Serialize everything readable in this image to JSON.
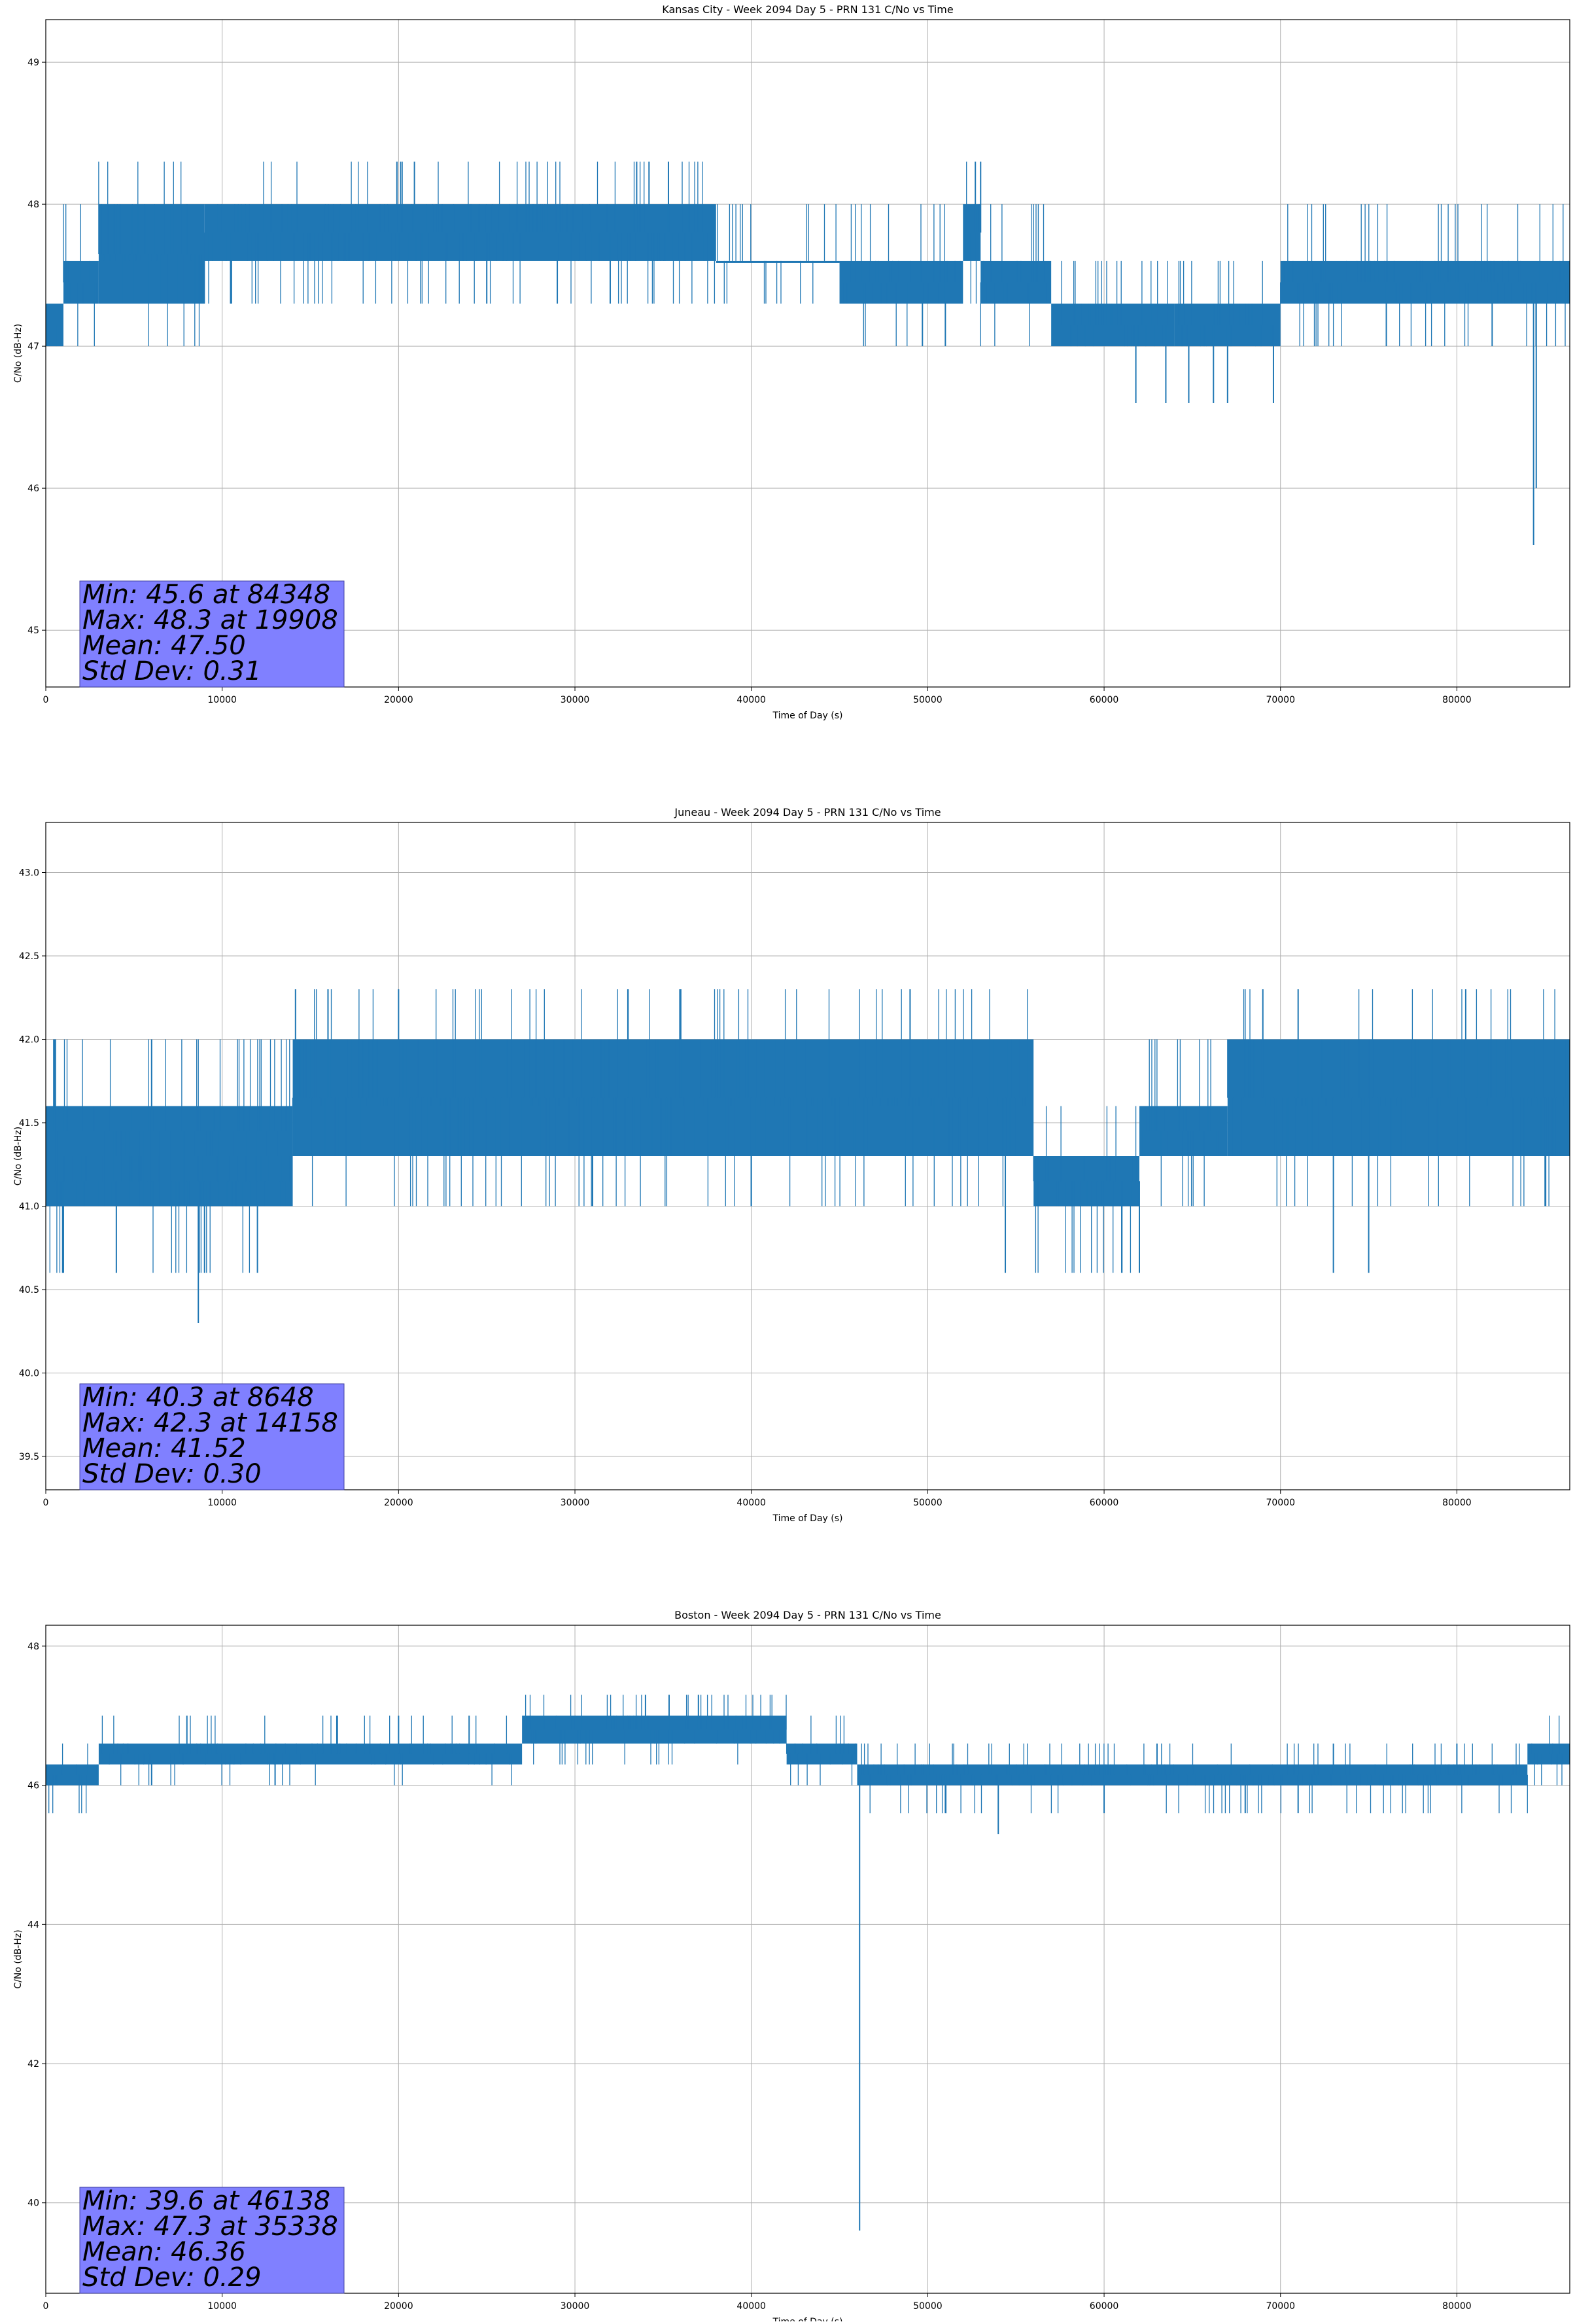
{
  "chart_data": [
    {
      "type": "line",
      "title": "Kansas City - Week 2094 Day 5 - PRN 131 C/No vs Time",
      "xlabel": "Time of Day (s)",
      "ylabel": "C/No (dB-Hz)",
      "xlim": [
        0,
        86400
      ],
      "ylim": [
        44.6,
        49.3
      ],
      "x_ticks": [
        0,
        10000,
        20000,
        30000,
        40000,
        50000,
        60000,
        70000,
        80000
      ],
      "y_ticks": [
        45,
        46,
        47,
        48,
        49
      ],
      "y_tick_labels": [
        "45",
        "46",
        "47",
        "48",
        "49"
      ],
      "grid": true,
      "series_color": "#1f77b4",
      "stats_box_color": "#8080ff",
      "stats_text": [
        "Min: 45.6 at 84348",
        "Max: 48.3 at 19908",
        "Mean: 47.50",
        "Std Dev: 0.31"
      ],
      "levels": [
        47.0,
        47.3,
        47.6,
        48.0,
        48.3
      ],
      "band_segments": [
        {
          "x": [
            0,
            1000
          ],
          "range": [
            47.0,
            47.3
          ]
        },
        {
          "x": [
            1000,
            3000
          ],
          "range": [
            47.3,
            47.6
          ]
        },
        {
          "x": [
            3000,
            9000
          ],
          "range": [
            47.3,
            48.0
          ]
        },
        {
          "x": [
            9000,
            38000
          ],
          "range": [
            47.6,
            48.0
          ]
        },
        {
          "x": [
            38000,
            45000
          ],
          "range": [
            47.6,
            47.6
          ]
        },
        {
          "x": [
            45000,
            52000
          ],
          "range": [
            47.3,
            47.6
          ]
        },
        {
          "x": [
            52000,
            53000
          ],
          "range": [
            47.6,
            48.0
          ]
        },
        {
          "x": [
            53000,
            57000
          ],
          "range": [
            47.3,
            47.6
          ]
        },
        {
          "x": [
            57000,
            64000
          ],
          "range": [
            47.0,
            47.3
          ]
        },
        {
          "x": [
            64000,
            70000
          ],
          "range": [
            47.0,
            47.3
          ]
        },
        {
          "x": [
            70000,
            86400
          ],
          "range": [
            47.3,
            47.6
          ]
        }
      ],
      "spikes": [
        [
          19908,
          48.3
        ],
        [
          20200,
          48.3
        ],
        [
          20900,
          48.3
        ],
        [
          33500,
          48.3
        ],
        [
          34200,
          48.3
        ],
        [
          35300,
          48.3
        ],
        [
          52700,
          48.3
        ],
        [
          53000,
          48.3
        ],
        [
          61800,
          46.6
        ],
        [
          63500,
          46.6
        ],
        [
          64800,
          46.6
        ],
        [
          66200,
          46.6
        ],
        [
          67000,
          46.6
        ],
        [
          69600,
          46.6
        ],
        [
          49700,
          47.0
        ],
        [
          51000,
          47.0
        ],
        [
          84348,
          45.6
        ],
        [
          84500,
          46.0
        ],
        [
          25000,
          47.3
        ],
        [
          29000,
          47.3
        ],
        [
          32000,
          47.3
        ],
        [
          10500,
          47.3
        ],
        [
          76000,
          47.0
        ],
        [
          82000,
          47.0
        ]
      ]
    },
    {
      "type": "line",
      "title": "Juneau - Week 2094 Day 5 - PRN 131 C/No vs Time",
      "xlabel": "Time of Day (s)",
      "ylabel": "C/No (dB-Hz)",
      "xlim": [
        0,
        86400
      ],
      "ylim": [
        39.3,
        43.3
      ],
      "x_ticks": [
        0,
        10000,
        20000,
        30000,
        40000,
        50000,
        60000,
        70000,
        80000
      ],
      "y_ticks": [
        39.5,
        40.0,
        40.5,
        41.0,
        41.5,
        42.0,
        42.5,
        43.0
      ],
      "y_tick_labels": [
        "39.5",
        "40.0",
        "40.5",
        "41.0",
        "41.5",
        "42.0",
        "42.5",
        "43.0"
      ],
      "grid": true,
      "series_color": "#1f77b4",
      "stats_box_color": "#8080ff",
      "stats_text": [
        "Min: 40.3 at 8648",
        "Max: 42.3 at 14158",
        "Mean: 41.52",
        "Std Dev: 0.30"
      ],
      "levels": [
        40.6,
        41.0,
        41.3,
        41.6,
        42.0,
        42.3
      ],
      "band_segments": [
        {
          "x": [
            0,
            14000
          ],
          "range": [
            41.0,
            41.3
          ]
        },
        {
          "x": [
            0,
            14000
          ],
          "range": [
            41.3,
            41.6
          ]
        },
        {
          "x": [
            14000,
            56000
          ],
          "range": [
            41.3,
            42.0
          ]
        },
        {
          "x": [
            56000,
            62000
          ],
          "range": [
            41.0,
            41.3
          ]
        },
        {
          "x": [
            62000,
            67000
          ],
          "range": [
            41.3,
            41.6
          ]
        },
        {
          "x": [
            67000,
            86400
          ],
          "range": [
            41.3,
            42.0
          ]
        }
      ],
      "spikes": [
        [
          8648,
          40.3
        ],
        [
          14158,
          42.3
        ],
        [
          6000,
          42.0
        ],
        [
          500,
          42.0
        ],
        [
          1000,
          40.6
        ],
        [
          4000,
          40.6
        ],
        [
          9000,
          40.6
        ],
        [
          12000,
          40.6
        ],
        [
          54400,
          40.6
        ],
        [
          61000,
          40.6
        ],
        [
          62000,
          40.6
        ],
        [
          73000,
          40.6
        ],
        [
          75000,
          40.6
        ],
        [
          16000,
          42.3
        ],
        [
          20000,
          42.3
        ],
        [
          33000,
          42.3
        ],
        [
          36000,
          42.3
        ],
        [
          49000,
          42.3
        ],
        [
          69000,
          42.3
        ],
        [
          71000,
          42.3
        ],
        [
          80500,
          42.3
        ],
        [
          85000,
          41.0
        ],
        [
          31000,
          41.0
        ],
        [
          40000,
          41.0
        ]
      ]
    },
    {
      "type": "line",
      "title": "Boston - Week 2094 Day 5 - PRN 131 C/No vs Time",
      "xlabel": "Time of Day (s)",
      "ylabel": "C/No (dB-Hz)",
      "xlim": [
        0,
        86400
      ],
      "ylim": [
        38.7,
        48.3
      ],
      "x_ticks": [
        0,
        10000,
        20000,
        30000,
        40000,
        50000,
        60000,
        70000,
        80000
      ],
      "y_ticks": [
        40,
        42,
        44,
        46,
        48
      ],
      "y_tick_labels": [
        "40",
        "42",
        "44",
        "46",
        "48"
      ],
      "grid": true,
      "series_color": "#1f77b4",
      "stats_box_color": "#8080ff",
      "stats_text": [
        "Min: 39.6 at 46138",
        "Max: 47.3 at 35338",
        "Mean: 46.36",
        "Std Dev: 0.29"
      ],
      "levels": [
        45.6,
        46.0,
        46.3,
        46.6,
        47.0,
        47.3
      ],
      "band_segments": [
        {
          "x": [
            0,
            3000
          ],
          "range": [
            46.0,
            46.3
          ]
        },
        {
          "x": [
            3000,
            27000
          ],
          "range": [
            46.3,
            46.6
          ]
        },
        {
          "x": [
            27000,
            42000
          ],
          "range": [
            46.6,
            47.0
          ]
        },
        {
          "x": [
            42000,
            46000
          ],
          "range": [
            46.3,
            46.6
          ]
        },
        {
          "x": [
            46000,
            84000
          ],
          "range": [
            46.0,
            46.3
          ]
        },
        {
          "x": [
            84000,
            86400
          ],
          "range": [
            46.3,
            46.6
          ]
        }
      ],
      "spikes": [
        [
          46138,
          39.6
        ],
        [
          35338,
          47.3
        ],
        [
          34000,
          47.3
        ],
        [
          37000,
          47.3
        ],
        [
          8000,
          47.0
        ],
        [
          16500,
          47.0
        ],
        [
          20000,
          47.0
        ],
        [
          24000,
          47.0
        ],
        [
          51000,
          45.6
        ],
        [
          54000,
          45.3
        ],
        [
          68000,
          45.6
        ],
        [
          71000,
          45.6
        ],
        [
          60000,
          45.6
        ],
        [
          63000,
          46.6
        ],
        [
          73000,
          46.6
        ],
        [
          80000,
          46.6
        ],
        [
          13000,
          46.0
        ],
        [
          6000,
          46.0
        ]
      ]
    }
  ]
}
